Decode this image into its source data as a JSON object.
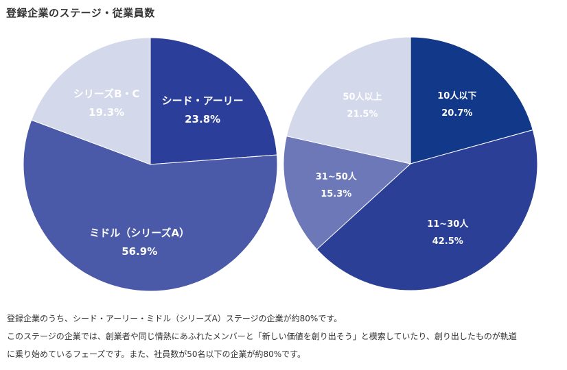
{
  "title": "登録企業のステージ・従業員数",
  "chart_data": [
    {
      "type": "pie",
      "slices": [
        {
          "label": "シード・アーリー",
          "value": 23.8,
          "value_label": "23.8%",
          "color": "#2b3e9a",
          "text_color": "#ffffff"
        },
        {
          "label": "ミドル（シリーズA）",
          "value": 56.9,
          "value_label": "56.9%",
          "color": "#4a59a8",
          "text_color": "#ffffff"
        },
        {
          "label": "シリーズB・C",
          "value": 19.3,
          "value_label": "19.3%",
          "color": "#d3d8ea",
          "text_color": "#2b3e9a"
        }
      ]
    },
    {
      "type": "pie",
      "slices": [
        {
          "label": "10人以下",
          "value": 20.7,
          "value_label": "20.7%",
          "color": "#12388a",
          "text_color": "#ffffff"
        },
        {
          "label": "11~30人",
          "value": 42.5,
          "value_label": "42.5%",
          "color": "#2c3f96",
          "text_color": "#ffffff"
        },
        {
          "label": "31~50人",
          "value": 15.3,
          "value_label": "15.3%",
          "color": "#6c78b8",
          "text_color": "#ffffff"
        },
        {
          "label": "50人以上",
          "value": 21.5,
          "value_label": "21.5%",
          "color": "#d3d8ea",
          "text_color": "#2b3e9a"
        }
      ]
    }
  ],
  "caption": {
    "line1": "登録企業のうち、シード・アーリー・ミドル（シリーズA）ステージの企業が約80%です。",
    "line2": "このステージの企業では、創業者や同じ情熱にあふれたメンバーと「新しい価値を創り出そう」と模索していたり、創り出したものが軌道",
    "line3": "に乗り始めているフェーズです。また、社員数が50名以下の企業が約80%です。"
  }
}
